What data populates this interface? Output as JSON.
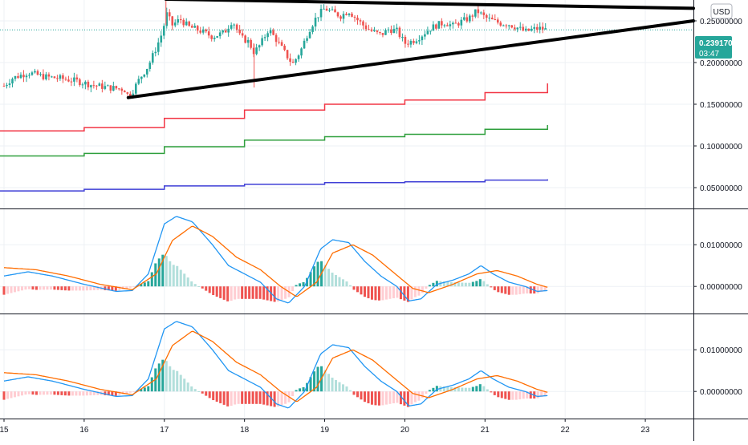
{
  "currency_badge": "USD",
  "price_label": {
    "price": "0.23917000",
    "countdown": "03:47"
  },
  "colors": {
    "up": "#26a69a",
    "down": "#ef5350",
    "up_light": "#b2dfdb",
    "down_light": "#ffcdd2",
    "macd_line": "#2196f3",
    "signal_line": "#ff6d00",
    "level_red": "#f23645",
    "level_green": "#2e9f3c",
    "level_blue": "#3f3fd6",
    "trendline": "#000000",
    "price_badge": "#26a69a"
  },
  "chart_data": [
    {
      "type": "candlestick",
      "panel": "price",
      "x_unit": "day",
      "xlim": [
        14.95,
        23.6
      ],
      "ylim": [
        0.025,
        0.275
      ],
      "y_ticks": [
        "0.25000000",
        "0.20000000",
        "0.15000000",
        "0.10000000",
        "0.05000000"
      ],
      "y_tick_values": [
        0.25,
        0.2,
        0.15,
        0.1,
        0.05
      ],
      "last_price": 0.23917,
      "candle_path": [
        [
          15.0,
          0.172
        ],
        [
          15.1,
          0.181
        ],
        [
          15.3,
          0.188
        ],
        [
          15.5,
          0.183
        ],
        [
          15.7,
          0.181
        ],
        [
          15.9,
          0.178
        ],
        [
          16.1,
          0.173
        ],
        [
          16.3,
          0.17
        ],
        [
          16.5,
          0.168
        ],
        [
          16.55,
          0.16
        ],
        [
          16.6,
          0.165
        ],
        [
          16.7,
          0.182
        ],
        [
          16.8,
          0.196
        ],
        [
          16.9,
          0.218
        ],
        [
          16.97,
          0.235
        ],
        [
          17.03,
          0.258
        ],
        [
          17.1,
          0.245
        ],
        [
          17.2,
          0.252
        ],
        [
          17.3,
          0.243
        ],
        [
          17.45,
          0.238
        ],
        [
          17.6,
          0.231
        ],
        [
          17.75,
          0.236
        ],
        [
          17.85,
          0.251
        ],
        [
          17.95,
          0.23
        ],
        [
          18.05,
          0.225
        ],
        [
          18.12,
          0.212
        ],
        [
          18.2,
          0.222
        ],
        [
          18.3,
          0.24
        ],
        [
          18.4,
          0.227
        ],
        [
          18.5,
          0.212
        ],
        [
          18.6,
          0.198
        ],
        [
          18.7,
          0.214
        ],
        [
          18.8,
          0.238
        ],
        [
          18.9,
          0.255
        ],
        [
          19.0,
          0.265
        ],
        [
          19.1,
          0.26
        ],
        [
          19.2,
          0.256
        ],
        [
          19.3,
          0.262
        ],
        [
          19.4,
          0.252
        ],
        [
          19.5,
          0.243
        ],
        [
          19.6,
          0.237
        ],
        [
          19.7,
          0.233
        ],
        [
          19.8,
          0.24
        ],
        [
          19.9,
          0.238
        ],
        [
          20.0,
          0.223
        ],
        [
          20.1,
          0.226
        ],
        [
          20.2,
          0.232
        ],
        [
          20.3,
          0.24
        ],
        [
          20.4,
          0.245
        ],
        [
          20.5,
          0.248
        ],
        [
          20.6,
          0.244
        ],
        [
          20.7,
          0.249
        ],
        [
          20.8,
          0.253
        ],
        [
          20.9,
          0.262
        ],
        [
          21.0,
          0.254
        ],
        [
          21.1,
          0.25
        ],
        [
          21.2,
          0.247
        ],
        [
          21.3,
          0.246
        ],
        [
          21.4,
          0.242
        ],
        [
          21.5,
          0.237
        ],
        [
          21.6,
          0.24
        ],
        [
          21.7,
          0.241
        ],
        [
          21.78,
          0.239
        ]
      ],
      "levels": [
        {
          "color": "red",
          "values": [
            0.118,
            0.122,
            0.133,
            0.143,
            0.15,
            0.155,
            0.164,
            0.175
          ]
        },
        {
          "color": "green",
          "values": [
            0.088,
            0.091,
            0.099,
            0.107,
            0.111,
            0.114,
            0.12,
            0.125
          ]
        },
        {
          "color": "blue",
          "values": [
            0.046,
            0.048,
            0.052,
            0.054,
            0.056,
            0.057,
            0.059,
            0.06
          ]
        }
      ],
      "level_steps": [
        16.0,
        17.0,
        18.0,
        19.0,
        20.0,
        21.0,
        21.78
      ],
      "trendlines": [
        {
          "from": [
            17.02,
            0.276
          ],
          "to": [
            23.6,
            0.265
          ]
        },
        {
          "from": [
            16.55,
            0.158
          ],
          "to": [
            23.6,
            0.25
          ]
        }
      ]
    },
    {
      "type": "macd",
      "panel": "indicator-1",
      "ylim": [
        -0.0065,
        0.0185
      ],
      "y_ticks": [
        "0.01000000",
        "0.00000000"
      ],
      "y_tick_values": [
        0.01,
        0.0
      ]
    },
    {
      "type": "macd",
      "panel": "indicator-2",
      "ylim": [
        -0.0065,
        0.0185
      ],
      "y_ticks": [
        "0.01000000",
        "0.00000000"
      ],
      "y_tick_values": [
        0.01,
        0.0
      ]
    }
  ],
  "x_axis": {
    "labels": [
      "15",
      "16",
      "17",
      "18",
      "19",
      "20",
      "21",
      "22",
      "23"
    ],
    "values": [
      15,
      16,
      17,
      18,
      19,
      20,
      21,
      22,
      23
    ]
  },
  "macd_shape": {
    "macd_path": [
      [
        15.0,
        0.0025
      ],
      [
        15.3,
        0.0035
      ],
      [
        15.6,
        0.0025
      ],
      [
        16.0,
        0.0005
      ],
      [
        16.4,
        -0.0012
      ],
      [
        16.6,
        -0.001
      ],
      [
        16.8,
        0.003
      ],
      [
        17.0,
        0.015
      ],
      [
        17.15,
        0.0168
      ],
      [
        17.35,
        0.0155
      ],
      [
        17.6,
        0.01
      ],
      [
        17.8,
        0.005
      ],
      [
        18.0,
        0.003
      ],
      [
        18.2,
        0.001
      ],
      [
        18.4,
        -0.003
      ],
      [
        18.55,
        -0.004
      ],
      [
        18.75,
        0.0
      ],
      [
        18.95,
        0.009
      ],
      [
        19.1,
        0.0112
      ],
      [
        19.3,
        0.0105
      ],
      [
        19.5,
        0.006
      ],
      [
        19.7,
        0.0025
      ],
      [
        19.9,
        0.0
      ],
      [
        20.05,
        -0.0035
      ],
      [
        20.2,
        -0.003
      ],
      [
        20.4,
        0.0005
      ],
      [
        20.6,
        0.0015
      ],
      [
        20.8,
        0.003
      ],
      [
        20.95,
        0.005
      ],
      [
        21.1,
        0.003
      ],
      [
        21.3,
        0.001
      ],
      [
        21.5,
        0.0
      ],
      [
        21.65,
        -0.0012
      ],
      [
        21.78,
        -0.001
      ]
    ],
    "signal_path": [
      [
        15.0,
        0.0045
      ],
      [
        15.4,
        0.004
      ],
      [
        15.8,
        0.0025
      ],
      [
        16.2,
        0.0005
      ],
      [
        16.6,
        -0.0008
      ],
      [
        16.9,
        0.003
      ],
      [
        17.1,
        0.011
      ],
      [
        17.35,
        0.0145
      ],
      [
        17.6,
        0.012
      ],
      [
        17.9,
        0.007
      ],
      [
        18.2,
        0.004
      ],
      [
        18.45,
        0.0
      ],
      [
        18.65,
        -0.0025
      ],
      [
        18.9,
        0.001
      ],
      [
        19.1,
        0.008
      ],
      [
        19.35,
        0.01
      ],
      [
        19.6,
        0.0075
      ],
      [
        19.85,
        0.0035
      ],
      [
        20.1,
        -0.0005
      ],
      [
        20.3,
        -0.0015
      ],
      [
        20.6,
        0.0005
      ],
      [
        20.9,
        0.003
      ],
      [
        21.15,
        0.0038
      ],
      [
        21.4,
        0.0025
      ],
      [
        21.65,
        0.0005
      ],
      [
        21.78,
        -0.0002
      ]
    ],
    "histogram_step": 0.045
  }
}
